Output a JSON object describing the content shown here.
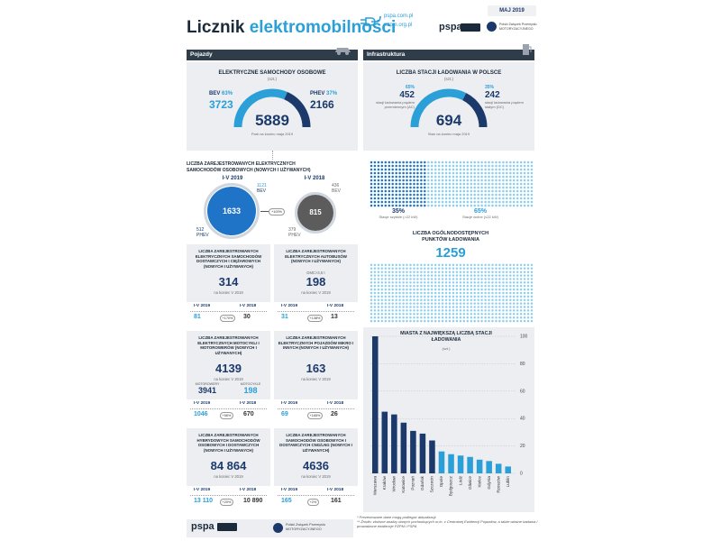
{
  "header": {
    "title_main": "Licznik",
    "title_accent": "elektromobilności",
    "site1": "pspa.com.pl",
    "site2": "pzpm.org.pl",
    "date": "MAJ 2019",
    "pspa_logo": "pspa",
    "pzpm_text": "Polski Związek Przemysłu MOTORYZACYJNEGO",
    "brand_color": "#2a9fd8",
    "navy_color": "#1b3a6b"
  },
  "vehicles": {
    "section": "Pojazdy",
    "cars": {
      "title": "ELEKTRYCZNE SAMOCHODY OSOBOWE",
      "unit": "(szt.)",
      "bev_label": "BEV",
      "bev_pct": "63%",
      "bev_value": "3723",
      "phev_label": "PHEV",
      "phev_pct": "37%",
      "phev_value": "2166",
      "total": "5889",
      "caption": "Park na koniec maja 2019",
      "bev_share": 0.63
    },
    "registered": {
      "title": "LICZBA ZAREJESTROWANYCH ELEKTRYCZNYCH SAMOCHODÓW OSOBOWYCH (NOWYCH I UŻYWANYCH)",
      "y2019_label": "I-V 2019",
      "y2019_total": "1633",
      "y2019_bev": "1121",
      "y2019_bev_label": "BEV",
      "y2019_phev": "512",
      "y2019_phev_label": "PHEV",
      "y2018_label": "I-V 2018",
      "y2018_total": "815",
      "y2018_bev": "436",
      "y2018_bev_label": "BEV",
      "y2018_phev": "379",
      "y2018_phev_label": "PHEV",
      "change": "+100%"
    },
    "cards": [
      {
        "title": "LICZBA ZAREJESTROWANYCH ELEKTRYCZNYCH SAMOCHODÓW DOSTAWCZYCH I CIĘŻAROWYCH (NOWYCH I UŻYWANYCH)",
        "sub": "",
        "value": "314",
        "caption": "na koniec V 2019",
        "y2019_label": "I-V 2019",
        "y2019": "81",
        "change": "+170%",
        "y2018_label": "I-V 2018",
        "y2018": "30"
      },
      {
        "title": "LICZBA ZAREJESTROWANYCH ELEKTRYCZNYCH AUTOBUSÓW (NOWYCH I UŻYWANYCH)",
        "sub": "DMC>3,5 t",
        "value": "198",
        "caption": "na koniec V 2019",
        "y2019_label": "I-V 2019",
        "y2019": "31",
        "change": "+138%",
        "y2018_label": "I-V 2018",
        "y2018": "13"
      },
      {
        "title": "LICZBA ZAREJESTROWANYCH ELEKTRYCZNYCH MOTOCYKLI I MOTOROWERÓW (NOWYCH I UŻYWANYCH)",
        "sub": "",
        "value": "4139",
        "caption": "na koniec V 2019",
        "split": [
          {
            "label": "MOTOROWERY",
            "value": "3941"
          },
          {
            "label": "MOTOCYKLE",
            "value": "198"
          }
        ],
        "y2019_label": "I-V 2019",
        "y2019": "1046",
        "change": "+56%",
        "y2018_label": "I-V 2018",
        "y2018": "670"
      },
      {
        "title": "LICZBA ZAREJESTROWANYCH ELEKTRYCZNYCH POJAZDÓW MIKRO I INNYCH (NOWYCH I UŻYWANYCH)",
        "sub": "",
        "value": "163",
        "caption": "na koniec V 2019",
        "y2019_label": "I-V 2019",
        "y2019": "69",
        "change": "+165%",
        "y2018_label": "I-V 2018",
        "y2018": "26"
      },
      {
        "title": "LICZBA ZAREJESTROWANYCH HYBRYDOWYCH SAMOCHODÓW OSOBOWYCH I DOSTAWCZYCH (NOWYCH I UŻYWANYCH)",
        "sub": "",
        "value": "84 864",
        "caption": "na koniec V 2019",
        "y2019_label": "I-V 2019",
        "y2019": "13 110",
        "change": "+20%",
        "y2018_label": "I-V 2018",
        "y2018": "10 890"
      },
      {
        "title": "LICZBA ZAREJESTROWANYCH SAMOCHODÓW OSOBOWYCH I DOSTAWCZYCH CNG/LNG (NOWYCH I UŻYWANYCH)",
        "sub": "",
        "value": "4636",
        "caption": "na koniec V 2019",
        "y2019_label": "I-V 2019",
        "y2019": "165",
        "change": "+2%",
        "y2018_label": "I-V 2018",
        "y2018": "161"
      }
    ]
  },
  "infra": {
    "section": "Infrastruktura",
    "stations": {
      "title": "LICZBA STACJI ŁADOWANIA W POLSCE",
      "unit": "(szt.)",
      "ac_pct": "65%",
      "ac_value": "452",
      "ac_desc": "stacji ładowania prądem przemiennym (AC)",
      "dc_pct": "35%",
      "dc_value": "242",
      "dc_desc": "stacji ładowania prądem stałym (DC)",
      "total": "694",
      "caption": "Stan na koniec maja 2019",
      "ac_share": 0.65
    },
    "speed": {
      "fast_pct": "35%",
      "fast_label": "Stacje szybkie (>22 kW)",
      "slow_pct": "65%",
      "slow_label": "Stacje wolne (≤22 kW)",
      "fast_share": 0.35
    },
    "points": {
      "title": "LICZBA OGÓLNODOSTĘPNYCH PUNKTÓW ŁADOWANIA",
      "value": "1259"
    }
  },
  "chart_data": {
    "type": "bar",
    "title": "MIASTA Z NAJWIĘKSZĄ LICZBĄ STACJI ŁADOWANIA",
    "subtitle": "(szt.)",
    "categories": [
      "Warszawa",
      "Kraków",
      "Wrocław",
      "Katowice",
      "Poznań",
      "Gdańsk",
      "Szczecin",
      "Opole",
      "Bydgoszcz",
      "Łódź",
      "Gliwice",
      "Kielce",
      "Gdynia",
      "Rzeszów",
      "Lublin"
    ],
    "values": [
      100,
      45,
      43,
      37,
      31,
      29,
      24,
      16,
      14,
      13,
      12,
      10,
      9,
      7,
      5
    ],
    "yticks": [
      0,
      20,
      40,
      60,
      80,
      100
    ],
    "ylim": [
      0,
      100
    ],
    "colors": [
      "#1b3a6b",
      "#1b3a6b",
      "#1b3a6b",
      "#1b3a6b",
      "#1b3a6b",
      "#1b3a6b",
      "#1b3a6b",
      "#2a9fd8",
      "#2a9fd8",
      "#2a9fd8",
      "#2a9fd8",
      "#2a9fd8",
      "#2a9fd8",
      "#2a9fd8",
      "#2a9fd8"
    ]
  },
  "footnotes": {
    "note1": "* Prezentowane dane mogą podlegać aktualizacji.",
    "note2": "** Źródło: złożone analizy danych pochodzących m.in. z Centralnej Ewidencji Pojazdów, a także własne badania i prowadzone ewidencje PZPM i PSPA"
  },
  "footer": {
    "pspa_logo": "pspa",
    "pzpm_text": "Polski Związek Przemysłu MOTORYZACYJNEGO"
  }
}
